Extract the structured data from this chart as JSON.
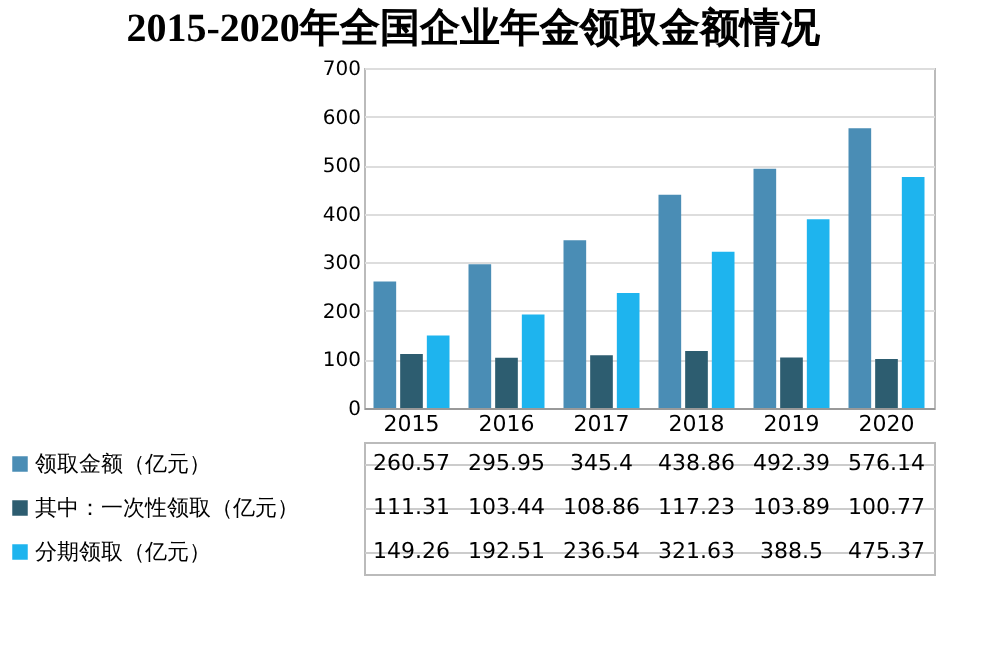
{
  "chart_data": {
    "type": "bar",
    "title": "2015-2020年全国企业年金领取金额情况",
    "categories": [
      "2015",
      "2016",
      "2017",
      "2018",
      "2019",
      "2020"
    ],
    "series": [
      {
        "name": "领取金额（亿元）",
        "color": "#4a8db5",
        "values": [
          260.57,
          295.95,
          345.4,
          438.86,
          492.39,
          576.14
        ]
      },
      {
        "name": "其中：一次性领取（亿元）",
        "color": "#2d5d70",
        "values": [
          111.31,
          103.44,
          108.86,
          117.23,
          103.89,
          100.77
        ]
      },
      {
        "name": "分期领取（亿元）",
        "color": "#1eb4ee",
        "values": [
          149.26,
          192.51,
          236.54,
          321.63,
          388.5,
          475.37
        ]
      }
    ],
    "ylim": [
      0,
      700
    ],
    "yticks": [
      0,
      100,
      200,
      300,
      400,
      500,
      600,
      700
    ],
    "grid": "y",
    "legend": "bottom",
    "data_labels": true
  }
}
